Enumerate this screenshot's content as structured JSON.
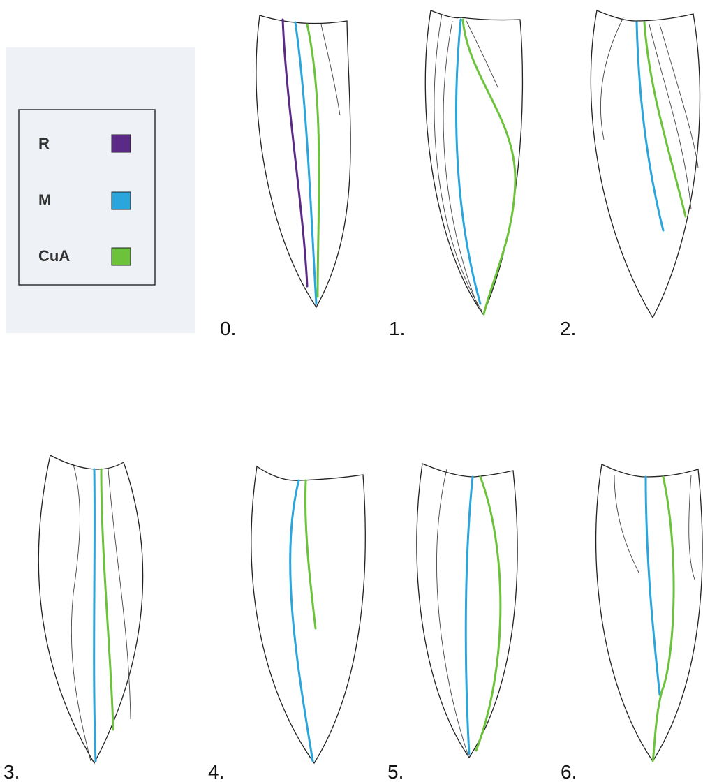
{
  "legend": {
    "items": [
      {
        "label": "R",
        "color": "#5b2a86"
      },
      {
        "label": "M",
        "color": "#2aa6dc"
      },
      {
        "label": "CuA",
        "color": "#6cc23a"
      }
    ]
  },
  "panels": [
    {
      "label": "0."
    },
    {
      "label": "1."
    },
    {
      "label": "2."
    },
    {
      "label": "3."
    },
    {
      "label": "4."
    },
    {
      "label": "5."
    },
    {
      "label": "6."
    }
  ]
}
